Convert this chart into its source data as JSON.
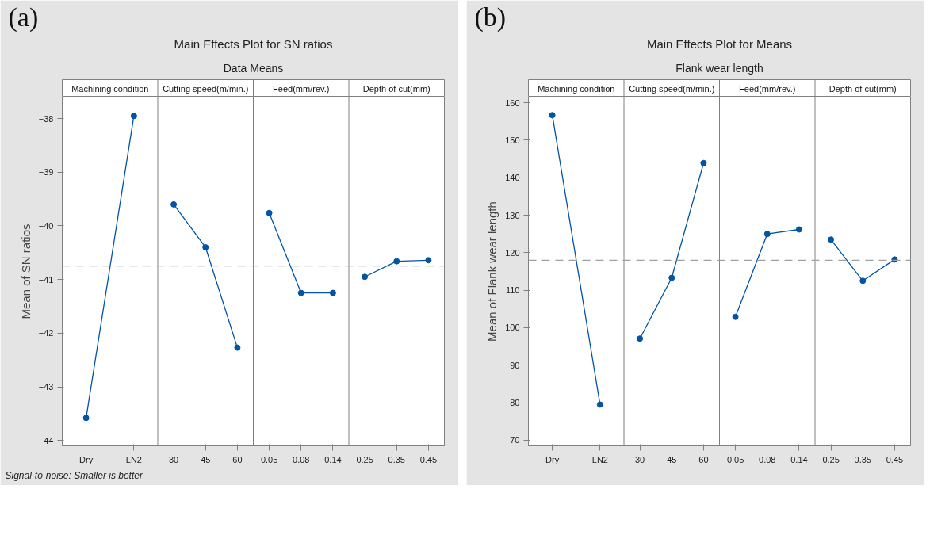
{
  "chart_data": [
    {
      "type": "line",
      "title": "Main Effects Plot for SN ratios",
      "subtitle": "Data Means",
      "ylabel": "Mean of SN ratios",
      "categories": [
        "Dry",
        "LN2",
        "30",
        "45",
        "60",
        "0.05",
        "0.08",
        "0.14",
        "0.25",
        "0.35",
        "0.45"
      ],
      "series": [
        {
          "color": "#0054a6",
          "values": [
            -43.58,
            -37.95,
            null,
            null,
            null,
            null,
            null,
            null,
            null,
            null,
            null
          ]
        },
        {
          "color": "#0054a6",
          "values": [
            null,
            null,
            -39.6,
            -40.4,
            -42.27,
            null,
            null,
            null,
            null,
            null,
            null
          ]
        },
        {
          "color": "#0054a6",
          "values": [
            null,
            null,
            null,
            null,
            null,
            -39.76,
            -41.25,
            -41.25,
            null,
            null,
            null
          ]
        },
        {
          "color": "#0054a6",
          "values": [
            null,
            null,
            null,
            null,
            null,
            null,
            null,
            null,
            -40.95,
            -40.66,
            -40.64
          ]
        }
      ],
      "ylim": [
        -44.1,
        -37.6
      ],
      "yticks": [
        -44,
        -43,
        -42,
        -41,
        -40,
        -39,
        -38
      ],
      "ref_lines": [
        {
          "axis": "y",
          "value": -40.75,
          "color": "#a0a0a0",
          "line_style": "dashed"
        }
      ],
      "marker": "circle",
      "grid": false,
      "annotations": [
        "(a)",
        "Machining condition",
        "Cutting speed(m/min.)",
        "Feed(mm/rev.)",
        "Depth of cut(mm)",
        "Signal-to-noise: Smaller is better"
      ]
    },
    {
      "type": "line",
      "title": "Main Effects Plot for Means",
      "subtitle": "Flank wear length",
      "ylabel": "Mean of Flank wear length",
      "categories": [
        "Dry",
        "LN2",
        "30",
        "45",
        "60",
        "0.05",
        "0.08",
        "0.14",
        "0.25",
        "0.35",
        "0.45"
      ],
      "series": [
        {
          "color": "#0054a6",
          "values": [
            156.7,
            79.5,
            null,
            null,
            null,
            null,
            null,
            null,
            null,
            null,
            null
          ]
        },
        {
          "color": "#0054a6",
          "values": [
            null,
            null,
            97.1,
            113.3,
            143.9,
            null,
            null,
            null,
            null,
            null,
            null
          ]
        },
        {
          "color": "#0054a6",
          "values": [
            null,
            null,
            null,
            null,
            null,
            102.9,
            125.0,
            126.2,
            null,
            null,
            null
          ]
        },
        {
          "color": "#0054a6",
          "values": [
            null,
            null,
            null,
            null,
            null,
            null,
            null,
            null,
            123.5,
            112.5,
            118.2
          ]
        }
      ],
      "ylim": [
        68.5,
        161.5
      ],
      "yticks": [
        70,
        80,
        90,
        100,
        110,
        120,
        130,
        140,
        150,
        160
      ],
      "ref_lines": [
        {
          "axis": "y",
          "value": 118.0,
          "color": "#a0a0a0",
          "line_style": "dashed"
        }
      ],
      "marker": "circle",
      "grid": false,
      "annotations": [
        "(b)",
        "Machining condition",
        "Cutting speed(m/min.)",
        "Feed(mm/rev.)",
        "Depth of cut(mm)"
      ]
    }
  ]
}
